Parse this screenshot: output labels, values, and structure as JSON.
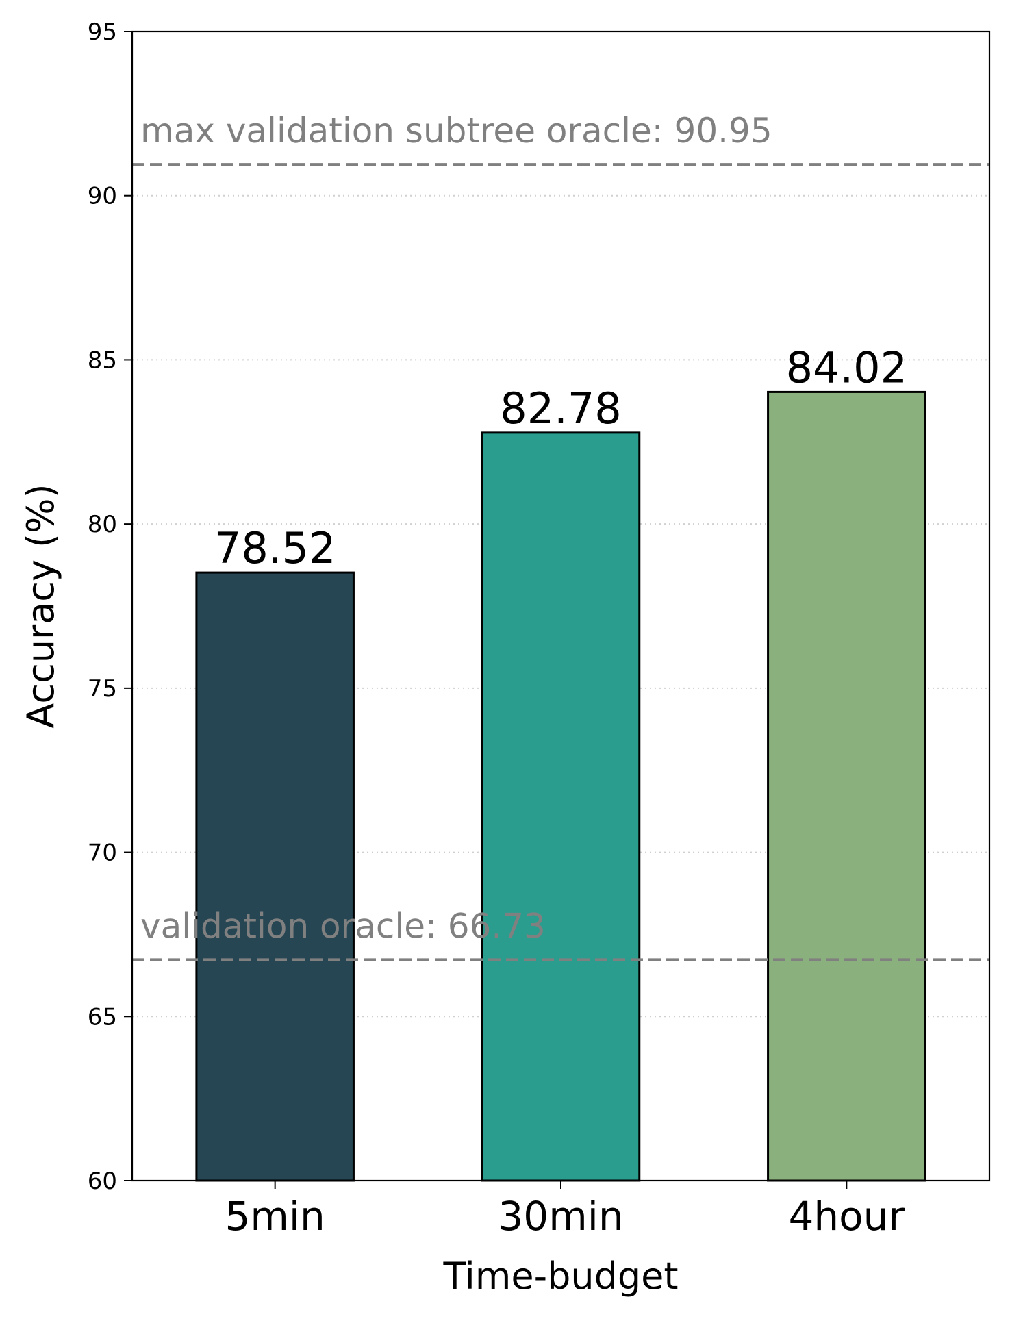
{
  "chart_data": {
    "type": "bar",
    "categories": [
      "5min",
      "30min",
      "4hour"
    ],
    "values": [
      78.52,
      82.78,
      84.02
    ],
    "value_labels": [
      "78.52",
      "82.78",
      "84.02"
    ],
    "colors": [
      "#264653",
      "#2a9d8f",
      "#8ab07d"
    ],
    "xlabel": "Time-budget",
    "ylabel": "Accuracy (%)",
    "ylim": [
      60,
      95
    ],
    "yticks": [
      60,
      65,
      70,
      75,
      80,
      85,
      90,
      95
    ],
    "ytick_labels": [
      "60",
      "65",
      "70",
      "75",
      "80",
      "85",
      "90",
      "95"
    ],
    "grid": "horizontal dotted",
    "reference_lines": [
      {
        "value": 90.95,
        "label": "max validation subtree oracle: 90.95",
        "color": "#808080",
        "style": "dashed"
      },
      {
        "value": 66.73,
        "label": "validation oracle: 66.73",
        "color": "#808080",
        "style": "dashed"
      }
    ]
  }
}
